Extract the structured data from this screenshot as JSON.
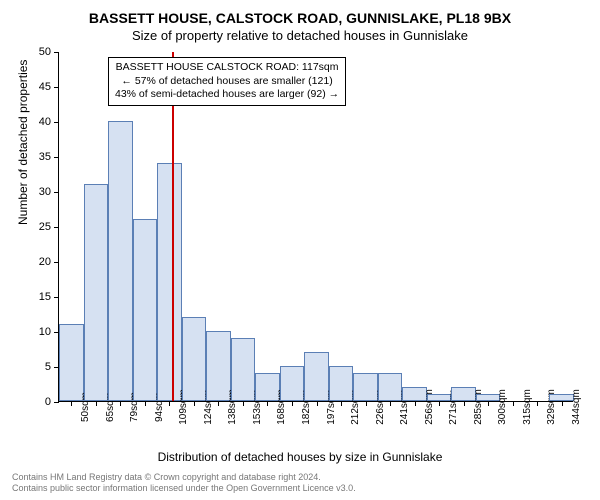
{
  "title_main": "BASSETT HOUSE, CALSTOCK ROAD, GUNNISLAKE, PL18 9BX",
  "title_sub": "Size of property relative to detached houses in Gunnislake",
  "y_axis_title": "Number of detached properties",
  "x_axis_title": "Distribution of detached houses by size in Gunnislake",
  "chart": {
    "type": "histogram",
    "ylim": [
      0,
      50
    ],
    "ytick_step": 5,
    "yticks": [
      0,
      5,
      10,
      15,
      20,
      25,
      30,
      35,
      40,
      45,
      50
    ],
    "x_categories": [
      "50sqm",
      "65sqm",
      "79sqm",
      "94sqm",
      "109sqm",
      "124sqm",
      "138sqm",
      "153sqm",
      "168sqm",
      "182sqm",
      "197sqm",
      "212sqm",
      "226sqm",
      "241sqm",
      "256sqm",
      "271sqm",
      "285sqm",
      "300sqm",
      "315sqm",
      "329sqm",
      "344sqm"
    ],
    "bar_values": [
      11,
      31,
      40,
      26,
      34,
      12,
      10,
      9,
      4,
      5,
      7,
      5,
      4,
      4,
      2,
      1,
      2,
      1,
      0,
      0,
      1
    ],
    "bar_fill": "#d6e1f2",
    "bar_stroke": "#5b7fb5",
    "bar_width_ratio": 1.0,
    "background_color": "#ffffff",
    "axis_color": "#000000",
    "marker": {
      "position_index": 4.6,
      "color": "#cc0000"
    }
  },
  "annotation": {
    "line1": "BASSETT HOUSE CALSTOCK ROAD: 117sqm",
    "line2": "← 57% of detached houses are smaller (121)",
    "line3": "43% of semi-detached houses are larger (92) →"
  },
  "footer_line1": "Contains HM Land Registry data © Crown copyright and database right 2024.",
  "footer_line2": "Contains public sector information licensed under the Open Government Licence v3.0."
}
